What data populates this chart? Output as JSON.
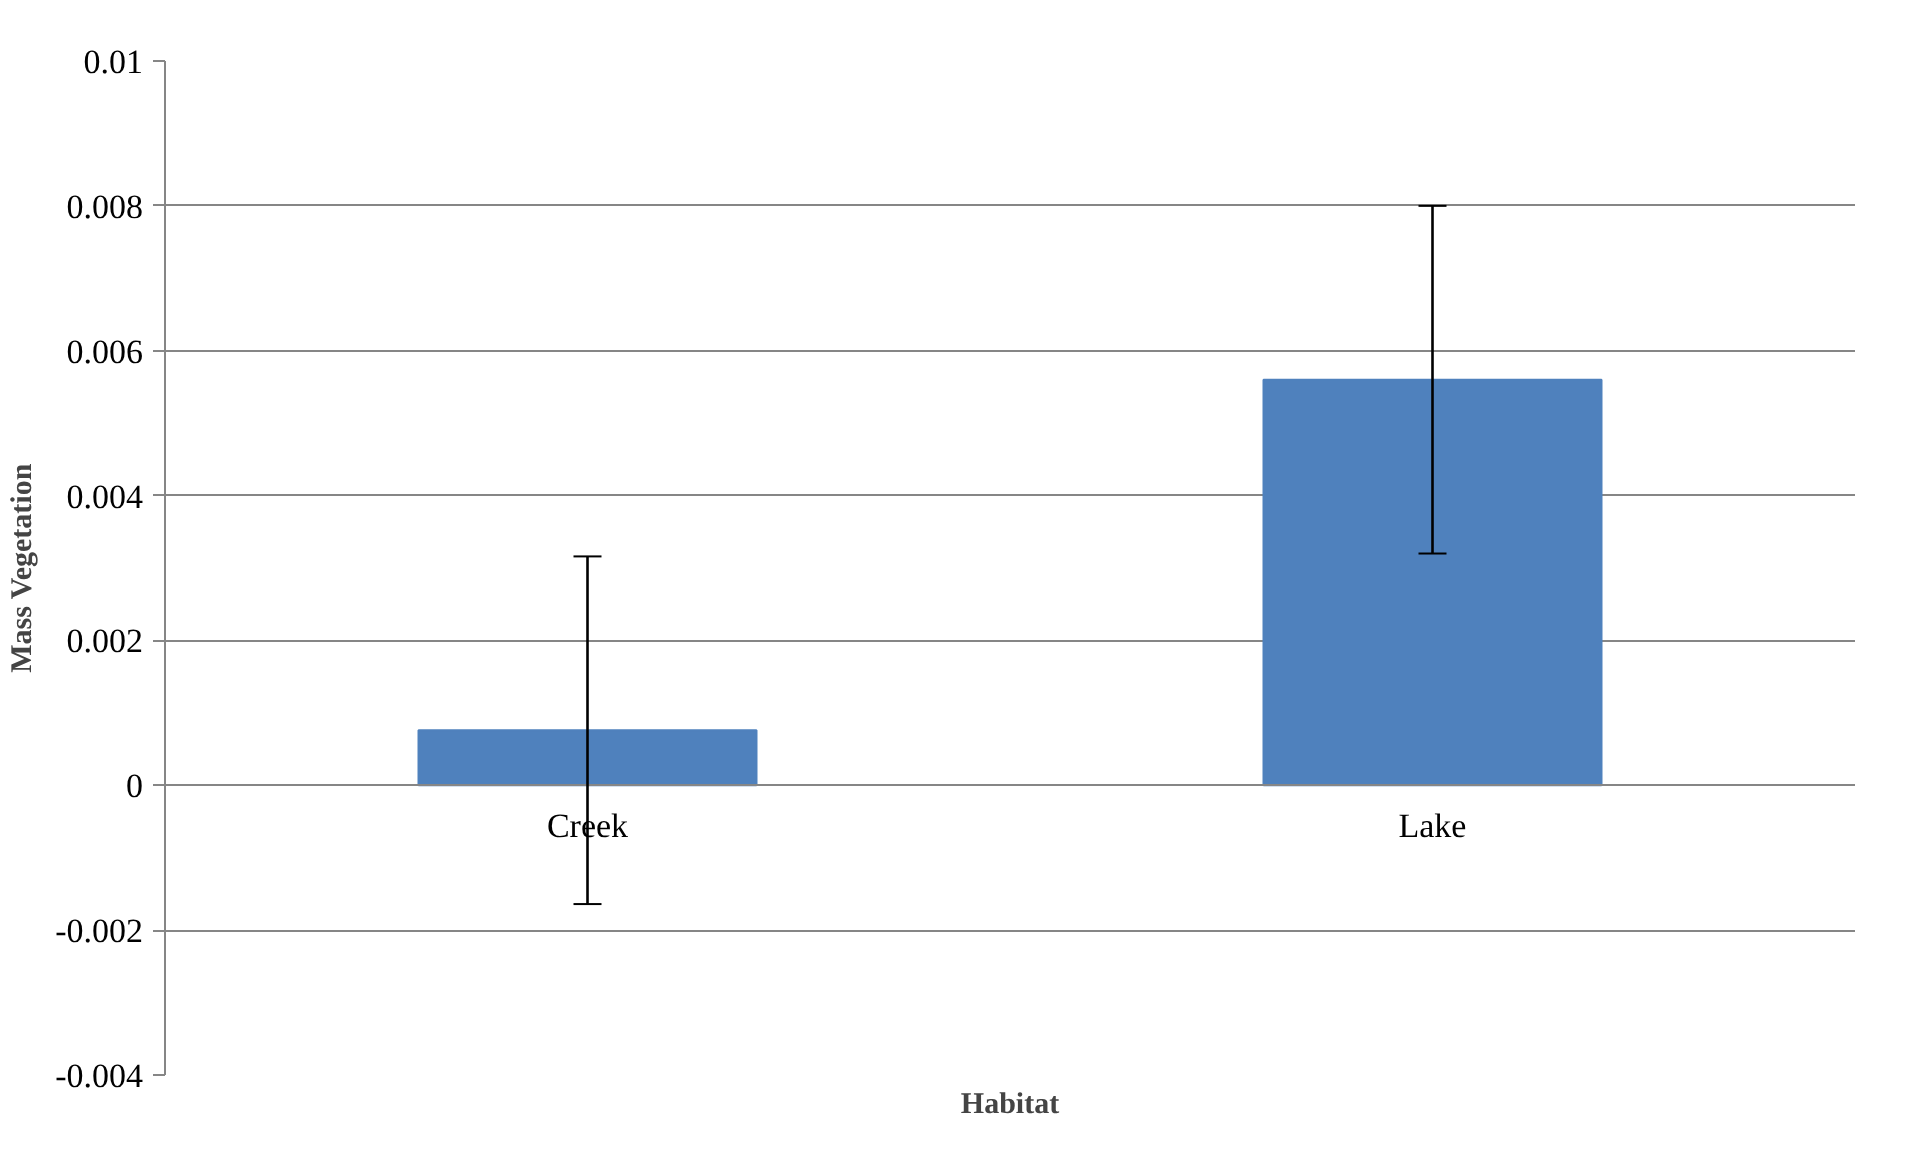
{
  "chart_data": {
    "type": "bar",
    "xlabel": "Habitat",
    "ylabel": "Mass Vegetation",
    "categories": [
      "Creek",
      "Lake"
    ],
    "values": [
      0.00076,
      0.0056
    ],
    "errors": [
      0.0024,
      0.0024
    ],
    "color": "#4f81bd",
    "ylim": [
      -0.004,
      0.01
    ],
    "yticks": [
      -0.004,
      -0.002,
      0,
      0.002,
      0.004,
      0.006,
      0.008,
      0.01
    ],
    "grid": "y"
  }
}
